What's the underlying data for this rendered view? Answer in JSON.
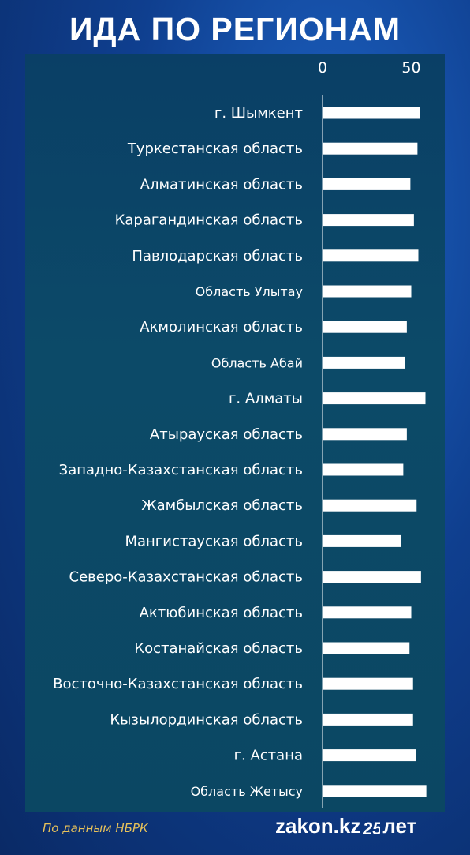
{
  "title": "ИДА ПО РЕГИОНАМ",
  "footer": {
    "source": "По данным НБРК",
    "logo_text": "zakon.kz",
    "logo_badge": "25",
    "logo_suffix": "лет"
  },
  "colors": {
    "bar": "#ffffff",
    "axis": "#ffffff",
    "label": "#ffffff",
    "source": "#e8c25a"
  },
  "chart_data": {
    "type": "bar",
    "orientation": "horizontal",
    "title": "ИДА ПО РЕГИОНАМ",
    "xlim": [
      0,
      60
    ],
    "x_ticks": [
      0,
      50
    ],
    "categories": [
      "г. Шымкент",
      "Туркестанская область",
      "Алматинская область",
      "Карагандинская область",
      "Павлодарская область",
      "Область Улытау",
      "Акмолинская область",
      "Область Абай",
      "г. Алматы",
      "Атырауская область",
      "Западно-Казахстанская область",
      "Жамбылская область",
      "Мангистауская область",
      "Северо-Казахстанская область",
      "Актюбинская область",
      "Костанайская область",
      "Восточно-Казахстанская область",
      "Кызылординская область",
      "г. Астана",
      "Область Жетысу"
    ],
    "values": [
      55,
      53.5,
      49.5,
      51.5,
      54,
      50,
      47.5,
      46.5,
      58,
      47.5,
      45.5,
      53,
      44,
      55.5,
      50,
      49,
      51,
      51,
      52.5,
      58.5
    ],
    "grid": false,
    "legend": "none"
  }
}
